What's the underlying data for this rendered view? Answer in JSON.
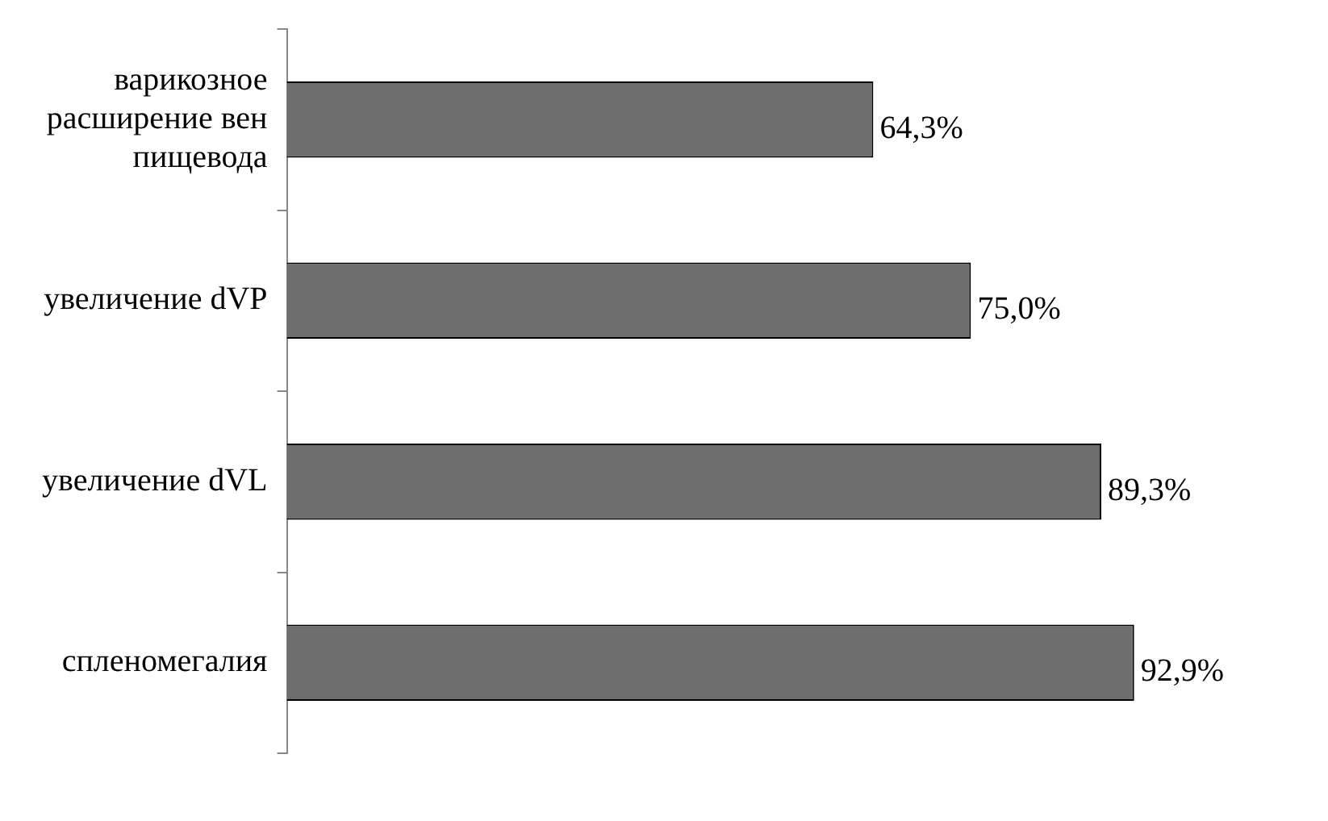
{
  "chart_data": {
    "type": "bar",
    "orientation": "horizontal",
    "categories": [
      "варикозное расширение вен пищевода",
      "увеличение dVP",
      "увеличение dVL",
      "спленомегалия"
    ],
    "values": [
      64.3,
      75.0,
      89.3,
      92.9
    ],
    "value_labels": [
      "64,3%",
      "75,0%",
      "89,3%",
      "92,9%"
    ],
    "color": "#6e6e6e",
    "grid": false,
    "legend": false,
    "tick_labels": "y"
  }
}
